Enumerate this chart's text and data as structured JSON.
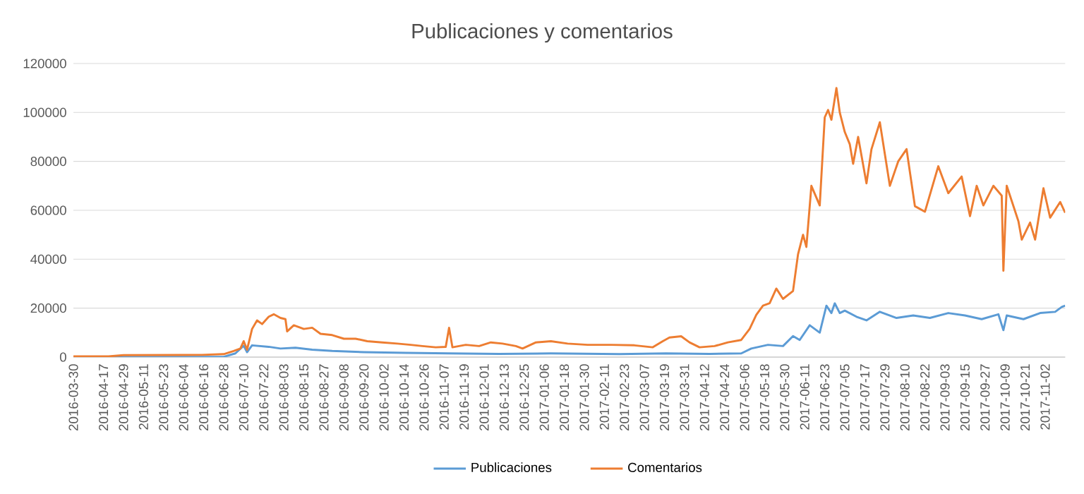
{
  "chart_data": {
    "type": "line",
    "title": "Publicaciones y comentarios",
    "xlim": [
      "2016-03-30",
      "2017-11-14"
    ],
    "xticks": [
      "2016-03-30",
      "2016-04-17",
      "2016-04-29",
      "2016-05-11",
      "2016-05-23",
      "2016-06-04",
      "2016-06-16",
      "2016-06-28",
      "2016-07-10",
      "2016-07-22",
      "2016-08-03",
      "2016-08-15",
      "2016-08-27",
      "2016-09-08",
      "2016-09-20",
      "2016-10-02",
      "2016-10-14",
      "2016-10-26",
      "2016-11-07",
      "2016-11-19",
      "2016-12-01",
      "2016-12-13",
      "2016-12-25",
      "2017-01-06",
      "2017-01-18",
      "2017-01-30",
      "2017-02-11",
      "2017-02-23",
      "2017-03-07",
      "2017-03-19",
      "2017-03-31",
      "2017-04-12",
      "2017-04-24",
      "2017-05-06",
      "2017-05-18",
      "2017-05-30",
      "2017-06-11",
      "2017-06-23",
      "2017-07-05",
      "2017-07-17",
      "2017-07-29",
      "2017-08-10",
      "2017-08-22",
      "2017-09-03",
      "2017-09-15",
      "2017-09-27",
      "2017-10-09",
      "2017-10-21",
      "2017-11-02"
    ],
    "ylim": [
      0,
      120000
    ],
    "yticks": [
      0,
      20000,
      40000,
      60000,
      80000,
      100000,
      120000
    ],
    "grid": "y",
    "legend": "bottom",
    "line_style": "solid",
    "series": [
      {
        "name": "Publicaciones",
        "color": "#5b9bd5",
        "x": [
          "2016-03-30",
          "2016-06-28",
          "2016-07-05",
          "2016-07-10",
          "2016-07-12",
          "2016-07-15",
          "2016-07-25",
          "2016-08-01",
          "2016-08-10",
          "2016-08-20",
          "2016-09-01",
          "2016-09-20",
          "2016-10-15",
          "2016-11-10",
          "2016-12-10",
          "2017-01-10",
          "2017-02-20",
          "2017-03-20",
          "2017-04-15",
          "2017-05-04",
          "2017-05-10",
          "2017-05-20",
          "2017-05-29",
          "2017-06-04",
          "2017-06-08",
          "2017-06-14",
          "2017-06-20",
          "2017-06-24",
          "2017-06-27",
          "2017-06-29",
          "2017-07-02",
          "2017-07-05",
          "2017-07-12",
          "2017-07-18",
          "2017-07-26",
          "2017-08-05",
          "2017-08-15",
          "2017-08-25",
          "2017-09-05",
          "2017-09-15",
          "2017-09-25",
          "2017-10-05",
          "2017-10-08",
          "2017-10-10",
          "2017-10-20",
          "2017-10-30",
          "2017-11-08",
          "2017-11-12",
          "2017-11-14"
        ],
        "values": [
          0,
          100,
          1500,
          4600,
          2000,
          4800,
          4200,
          3500,
          3800,
          3000,
          2500,
          2000,
          1700,
          1500,
          1300,
          1500,
          1200,
          1500,
          1300,
          1500,
          3500,
          5000,
          4500,
          8600,
          7000,
          13000,
          10000,
          21000,
          18000,
          22000,
          18000,
          19000,
          16500,
          15000,
          18500,
          16000,
          17000,
          16000,
          18000,
          17000,
          15500,
          17500,
          11000,
          17000,
          15500,
          18000,
          18500,
          20500,
          21000
        ]
      },
      {
        "name": "Comentarios",
        "color": "#ed7d31",
        "x": [
          "2016-03-30",
          "2016-04-20",
          "2016-04-29",
          "2016-06-15",
          "2016-06-28",
          "2016-07-04",
          "2016-07-08",
          "2016-07-10",
          "2016-07-12",
          "2016-07-15",
          "2016-07-18",
          "2016-07-21",
          "2016-07-25",
          "2016-07-28",
          "2016-08-01",
          "2016-08-04",
          "2016-08-05",
          "2016-08-09",
          "2016-08-15",
          "2016-08-20",
          "2016-08-25",
          "2016-09-01",
          "2016-09-08",
          "2016-09-15",
          "2016-09-22",
          "2016-10-01",
          "2016-10-10",
          "2016-10-18",
          "2016-10-25",
          "2016-11-02",
          "2016-11-08",
          "2016-11-10",
          "2016-11-12",
          "2016-11-20",
          "2016-11-28",
          "2016-12-05",
          "2016-12-12",
          "2016-12-20",
          "2016-12-24",
          "2017-01-01",
          "2017-01-10",
          "2017-01-20",
          "2017-02-01",
          "2017-02-15",
          "2017-03-01",
          "2017-03-12",
          "2017-03-18",
          "2017-03-22",
          "2017-03-29",
          "2017-04-03",
          "2017-04-09",
          "2017-04-18",
          "2017-04-26",
          "2017-05-04",
          "2017-05-09",
          "2017-05-13",
          "2017-05-17",
          "2017-05-21",
          "2017-05-25",
          "2017-05-29",
          "2017-06-04",
          "2017-06-07",
          "2017-06-10",
          "2017-06-12",
          "2017-06-15",
          "2017-06-20",
          "2017-06-23",
          "2017-06-25",
          "2017-06-27",
          "2017-06-30",
          "2017-07-02",
          "2017-07-05",
          "2017-07-08",
          "2017-07-10",
          "2017-07-13",
          "2017-07-18",
          "2017-07-21",
          "2017-07-26",
          "2017-08-01",
          "2017-08-06",
          "2017-08-11",
          "2017-08-16",
          "2017-08-22",
          "2017-08-30",
          "2017-09-05",
          "2017-09-13",
          "2017-09-18",
          "2017-09-22",
          "2017-09-26",
          "2017-10-02",
          "2017-10-07",
          "2017-10-08",
          "2017-10-10",
          "2017-10-17",
          "2017-10-19",
          "2017-10-24",
          "2017-10-27",
          "2017-11-01",
          "2017-11-05",
          "2017-11-11",
          "2017-11-14"
        ],
        "values": [
          300,
          300,
          800,
          900,
          1200,
          2500,
          3500,
          6500,
          3000,
          11500,
          15000,
          13500,
          16500,
          17500,
          16000,
          15500,
          10500,
          13000,
          11500,
          12000,
          9500,
          9000,
          7500,
          7500,
          6500,
          6000,
          5500,
          5000,
          4500,
          4000,
          4200,
          12000,
          4000,
          5000,
          4500,
          6000,
          5500,
          4500,
          3500,
          6000,
          6500,
          5500,
          5000,
          5000,
          4800,
          4000,
          6500,
          8000,
          8500,
          6000,
          4000,
          4500,
          6000,
          7000,
          11500,
          17300,
          21000,
          22000,
          28000,
          23800,
          27000,
          42000,
          50000,
          45000,
          70000,
          62000,
          98000,
          101000,
          97000,
          110000,
          100000,
          92000,
          87000,
          79000,
          90000,
          71000,
          85000,
          96000,
          70000,
          80000,
          85000,
          61700,
          59400,
          78000,
          67000,
          73800,
          57600,
          70000,
          62000,
          70000,
          66000,
          35300,
          70000,
          55500,
          48000,
          55000,
          48000,
          69000,
          57000,
          63400,
          59000
        ]
      }
    ]
  }
}
